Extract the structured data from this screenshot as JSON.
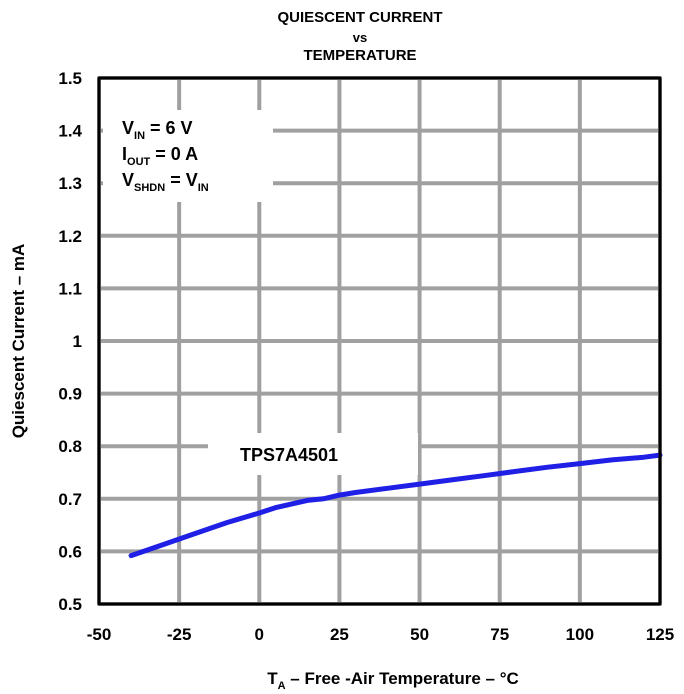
{
  "chart_data": {
    "type": "line",
    "title_lines": [
      "QUIESCENT CURRENT",
      "vs",
      "TEMPERATURE"
    ],
    "xlabel": {
      "main": "T",
      "sub": "A",
      "rest": " – Free -Air Temperature – °C"
    },
    "ylabel": "Quiescent Current – mA",
    "xlim": [
      -50,
      125
    ],
    "ylim": [
      0.5,
      1.5
    ],
    "x_ticks": [
      -50,
      -25,
      0,
      25,
      50,
      75,
      100,
      125
    ],
    "x_tick_labels": [
      "-50",
      "-25",
      "0",
      "25",
      "50",
      "75",
      "100",
      "125"
    ],
    "y_ticks": [
      0.5,
      0.6,
      0.7,
      0.8,
      0.9,
      1.0,
      1.1,
      1.2,
      1.3,
      1.4,
      1.5
    ],
    "y_tick_labels": [
      "0.5",
      "0.6",
      "0.7",
      "0.8",
      "0.9",
      "1",
      "1.1",
      "1.2",
      "1.3",
      "1.4",
      "1.5"
    ],
    "grid": true,
    "conditions": [
      {
        "main": "V",
        "sub": "IN",
        "rest": " = 6 V",
        "sub2": "",
        "rest2": ""
      },
      {
        "main": "I",
        "sub": "OUT",
        "rest": " = 0 A",
        "sub2": "",
        "rest2": ""
      },
      {
        "main": "V",
        "sub": "SHDN",
        "rest": " = V",
        "sub2": "IN",
        "rest2": ""
      }
    ],
    "series": [
      {
        "name": "TPS7A4501",
        "color": "#1f1fe6",
        "x": [
          -40,
          -30,
          -20,
          -10,
          0,
          5,
          10,
          15,
          20,
          25,
          30,
          40,
          50,
          60,
          70,
          80,
          90,
          100,
          110,
          120,
          125
        ],
        "y": [
          0.592,
          0.613,
          0.634,
          0.655,
          0.673,
          0.683,
          0.69,
          0.697,
          0.7,
          0.707,
          0.712,
          0.72,
          0.728,
          0.736,
          0.744,
          0.752,
          0.76,
          0.767,
          0.774,
          0.779,
          0.783
        ]
      }
    ]
  }
}
